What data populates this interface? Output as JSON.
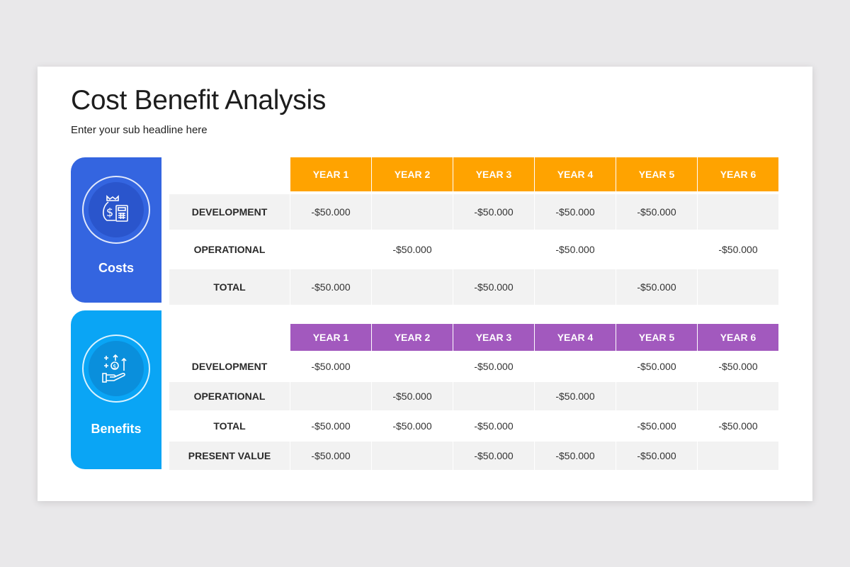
{
  "title": "Cost Benefit Analysis",
  "subtitle": "Enter your sub headline here",
  "colors": {
    "costs_panel": "#3465e0",
    "benefits_panel": "#0aa5f5",
    "costs_header": "#ffa300",
    "benefits_header": "#a259be",
    "row_grey": "#f2f2f2"
  },
  "costs": {
    "label": "Costs",
    "icon": "money-bag-calculator-icon",
    "headers": [
      "YEAR 1",
      "YEAR 2",
      "YEAR 3",
      "YEAR 4",
      "YEAR 5",
      "YEAR 6"
    ],
    "rows": [
      {
        "label": "DEVELOPMENT",
        "cells": [
          "-$50.000",
          "",
          "-$50.000",
          "-$50.000",
          "-$50.000",
          ""
        ]
      },
      {
        "label": "OPERATIONAL",
        "cells": [
          "",
          "-$50.000",
          "",
          "-$50.000",
          "",
          "-$50.000"
        ]
      },
      {
        "label": "TOTAL",
        "cells": [
          "-$50.000",
          "",
          "-$50.000",
          "",
          "-$50.000",
          ""
        ]
      }
    ]
  },
  "benefits": {
    "label": "Benefits",
    "icon": "hand-money-growth-icon",
    "headers": [
      "YEAR 1",
      "YEAR 2",
      "YEAR 3",
      "YEAR 4",
      "YEAR 5",
      "YEAR 6"
    ],
    "rows": [
      {
        "label": "DEVELOPMENT",
        "cells": [
          "-$50.000",
          "",
          "-$50.000",
          "",
          "-$50.000",
          "-$50.000"
        ]
      },
      {
        "label": "OPERATIONAL",
        "cells": [
          "",
          "-$50.000",
          "",
          "-$50.000",
          "",
          ""
        ]
      },
      {
        "label": "TOTAL",
        "cells": [
          "-$50.000",
          "-$50.000",
          "-$50.000",
          "",
          "-$50.000",
          "-$50.000"
        ]
      },
      {
        "label": "PRESENT VALUE",
        "cells": [
          "-$50.000",
          "",
          "-$50.000",
          "-$50.000",
          "-$50.000",
          ""
        ]
      }
    ]
  }
}
